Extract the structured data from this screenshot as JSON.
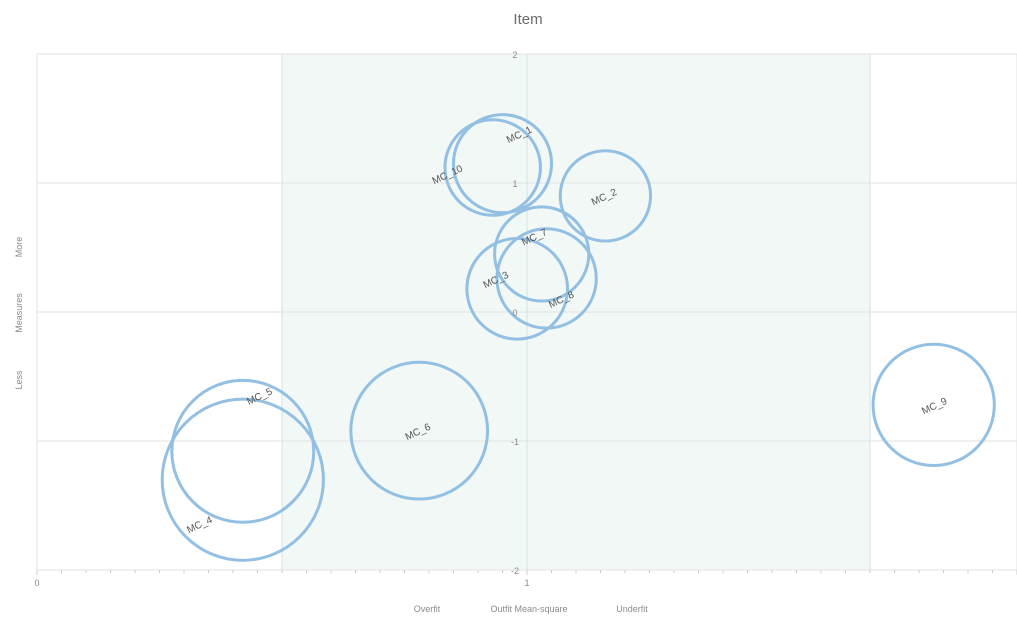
{
  "chart_data": {
    "type": "scatter",
    "title": "Item",
    "xlabel": "Outfit Mean-square",
    "xlabel_left": "Overfit",
    "xlabel_right": "Underfit",
    "ylabel": "Measures",
    "ylabel_low": "Less",
    "ylabel_high": "More",
    "xlim": [
      0,
      2
    ],
    "ylim": [
      -2,
      2
    ],
    "x_ticks": [
      "0",
      "1"
    ],
    "y_ticks": [
      "2",
      "1",
      "0",
      "-1",
      "-2"
    ],
    "acceptable_range": [
      0.5,
      1.7
    ],
    "gridlines": true,
    "colors": {
      "bubble_stroke": "#93bfe3",
      "band_fill": "#f1f8f5",
      "band_stroke": "#cfe3e6",
      "grid": "#e2e2e2"
    },
    "points": [
      {
        "label": "MC_1",
        "x": 0.95,
        "y": 1.15,
        "size": 0.76
      },
      {
        "label": "MC_10",
        "x": 0.93,
        "y": 1.12,
        "size": 0.74
      },
      {
        "label": "MC_2",
        "x": 1.16,
        "y": 0.9,
        "size": 0.7
      },
      {
        "label": "MC_7",
        "x": 1.03,
        "y": 0.45,
        "size": 0.73
      },
      {
        "label": "MC_3",
        "x": 0.98,
        "y": 0.18,
        "size": 0.78
      },
      {
        "label": "MC_8",
        "x": 1.04,
        "y": 0.26,
        "size": 0.77
      },
      {
        "label": "MC_6",
        "x": 0.78,
        "y": -0.92,
        "size": 1.06
      },
      {
        "label": "MC_9",
        "x": 1.83,
        "y": -0.72,
        "size": 0.94
      },
      {
        "label": "MC_5",
        "x": 0.42,
        "y": -1.08,
        "size": 1.1
      },
      {
        "label": "MC_4",
        "x": 0.42,
        "y": -1.3,
        "size": 1.25
      }
    ]
  }
}
